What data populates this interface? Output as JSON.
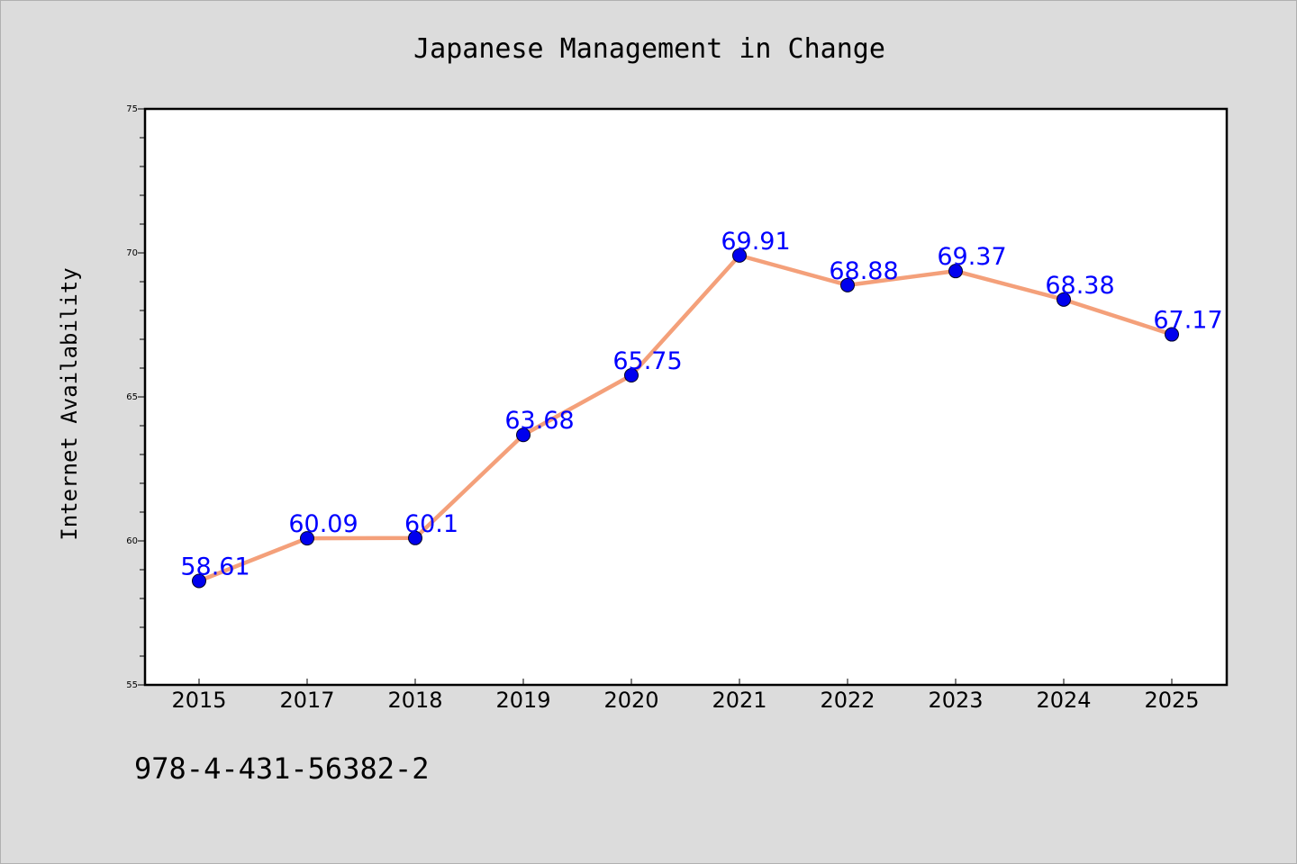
{
  "chart_data": {
    "type": "line",
    "title": "Japanese Management in Change",
    "xlabel": "",
    "ylabel": "Internet Availability",
    "categories": [
      "2015",
      "2017",
      "2018",
      "2019",
      "2020",
      "2021",
      "2022",
      "2023",
      "2024",
      "2025"
    ],
    "series": [
      {
        "values": [
          58.61,
          60.09,
          60.1,
          63.68,
          65.75,
          69.91,
          68.88,
          69.37,
          68.38,
          67.17
        ],
        "labels": [
          "58.61",
          "60.09",
          "60.1",
          "63.68",
          "65.75",
          "69.91",
          "68.88",
          "69.37",
          "68.38",
          "67.17"
        ],
        "line_color": "#f4a07a",
        "marker_color": "#0000ee"
      }
    ],
    "ylim": [
      55,
      75
    ],
    "y_ticks": [
      "55",
      "60",
      "65",
      "70",
      "75"
    ],
    "grid": false,
    "legend": "none",
    "label_color": "#0000ff"
  },
  "footer": {
    "code": "978-4-431-56382-2"
  }
}
